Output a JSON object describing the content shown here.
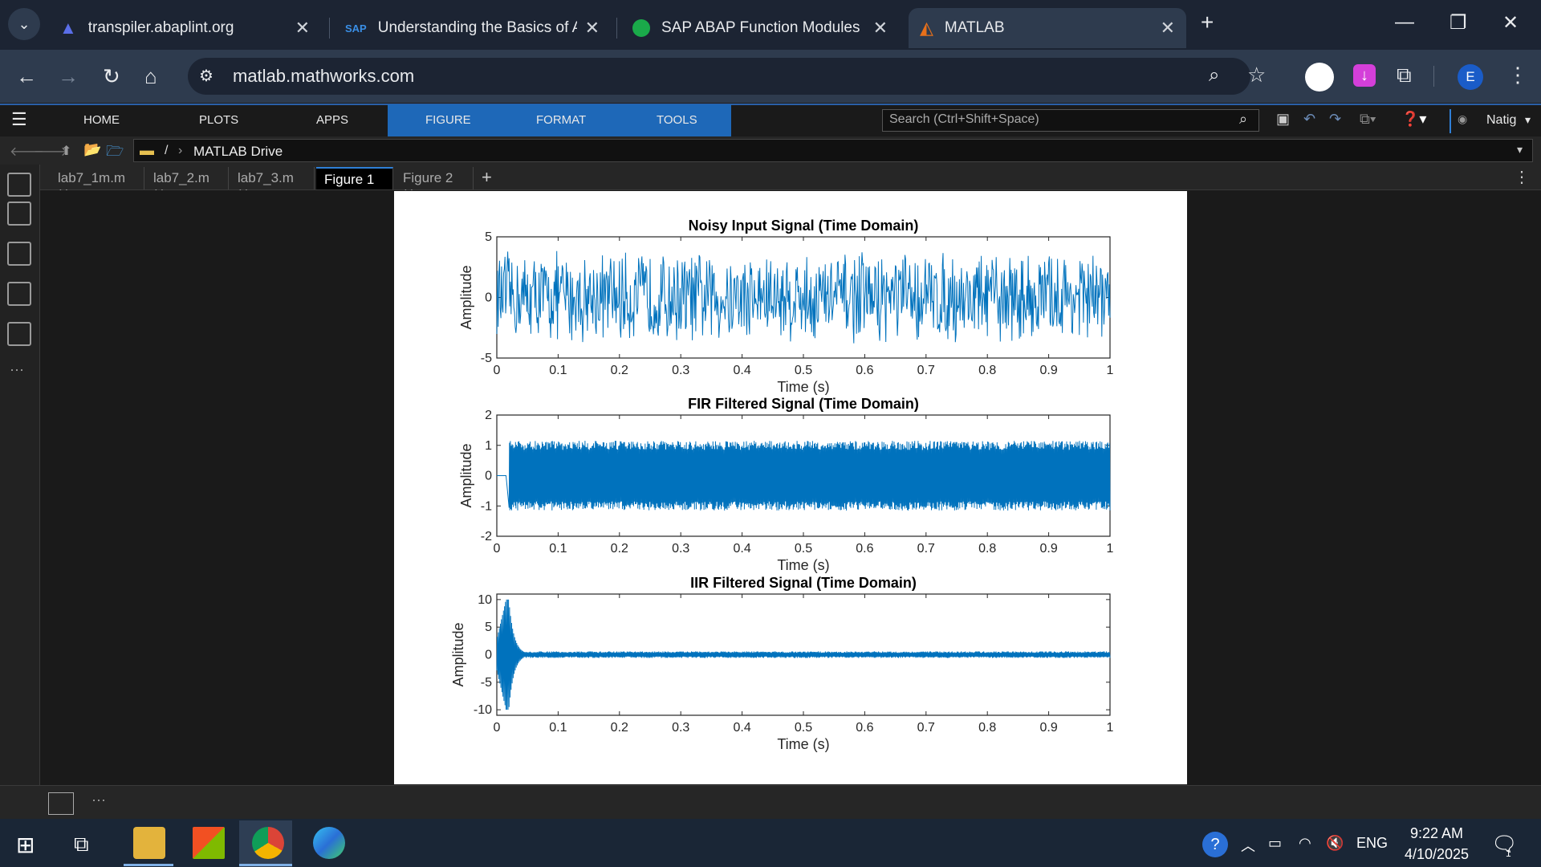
{
  "browser": {
    "tabs": [
      {
        "title": "transpiler.abaplint.org",
        "icon": "abaplint-icon"
      },
      {
        "title": "Understanding the Basics of AB",
        "icon": "sap-icon"
      },
      {
        "title": "SAP ABAP Function Modules",
        "icon": "leaf-icon"
      },
      {
        "title": "MATLAB",
        "icon": "matlab-icon",
        "active": true
      }
    ],
    "url": "matlab.mathworks.com",
    "profile_initial": "E"
  },
  "matlab": {
    "toolstrip_tabs": [
      "HOME",
      "PLOTS",
      "APPS",
      "FIGURE",
      "FORMAT",
      "TOOLS"
    ],
    "active_tab": "FIGURE",
    "search_placeholder": "Search (Ctrl+Shift+Space)",
    "user": "Natig",
    "breadcrumb": {
      "root": "/",
      "folder": "MATLAB Drive"
    },
    "doc_tabs": [
      {
        "label": "lab7_1m.m"
      },
      {
        "label": "lab7_2.m"
      },
      {
        "label": "lab7_3.m"
      },
      {
        "label": "Figure 1",
        "active": true
      },
      {
        "label": "Figure 2"
      }
    ]
  },
  "chart_data": [
    {
      "type": "line",
      "title": "Noisy Input Signal (Time Domain)",
      "xlabel": "Time (s)",
      "ylabel": "Amplitude",
      "xlim": [
        0,
        1
      ],
      "ylim": [
        -5,
        5
      ],
      "xticks": [
        "0",
        "0.1",
        "0.2",
        "0.3",
        "0.4",
        "0.5",
        "0.6",
        "0.7",
        "0.8",
        "0.9",
        "1"
      ],
      "yticks": [
        "-5",
        "0",
        "5"
      ],
      "series": [
        {
          "color": "#0072bd",
          "x": [
            0,
            1
          ],
          "y_range": [
            -4.2,
            4.2
          ],
          "description": "dense noise"
        }
      ]
    },
    {
      "type": "line",
      "title": "FIR Filtered Signal (Time Domain)",
      "xlabel": "Time (s)",
      "ylabel": "Amplitude",
      "xlim": [
        0,
        1
      ],
      "ylim": [
        -2,
        2
      ],
      "xticks": [
        "0",
        "0.1",
        "0.2",
        "0.3",
        "0.4",
        "0.5",
        "0.6",
        "0.7",
        "0.8",
        "0.9",
        "1"
      ],
      "yticks": [
        "-2",
        "-1",
        "0",
        "1",
        "2"
      ],
      "series": [
        {
          "color": "#0072bd",
          "x": [
            0.02,
            1
          ],
          "y_range": [
            -1.2,
            1.3
          ]
        }
      ]
    },
    {
      "type": "line",
      "title": "IIR Filtered Signal (Time Domain)",
      "xlabel": "Time (s)",
      "ylabel": "Amplitude",
      "xlim": [
        0,
        1
      ],
      "ylim": [
        -11,
        11
      ],
      "xticks": [
        "0",
        "0.1",
        "0.2",
        "0.3",
        "0.4",
        "0.5",
        "0.6",
        "0.7",
        "0.8",
        "0.9",
        "1"
      ],
      "yticks": [
        "-10",
        "-5",
        "0",
        "5",
        "10"
      ],
      "series": [
        {
          "color": "#0072bd",
          "x": [
            0,
            1
          ],
          "transient_peak": [
            -9.5,
            10
          ],
          "steady_range": [
            -0.6,
            0.6
          ]
        }
      ]
    }
  ],
  "taskbar": {
    "time": "9:22 AM",
    "date": "4/10/2025",
    "lang": "ENG",
    "notif_count": "1"
  }
}
